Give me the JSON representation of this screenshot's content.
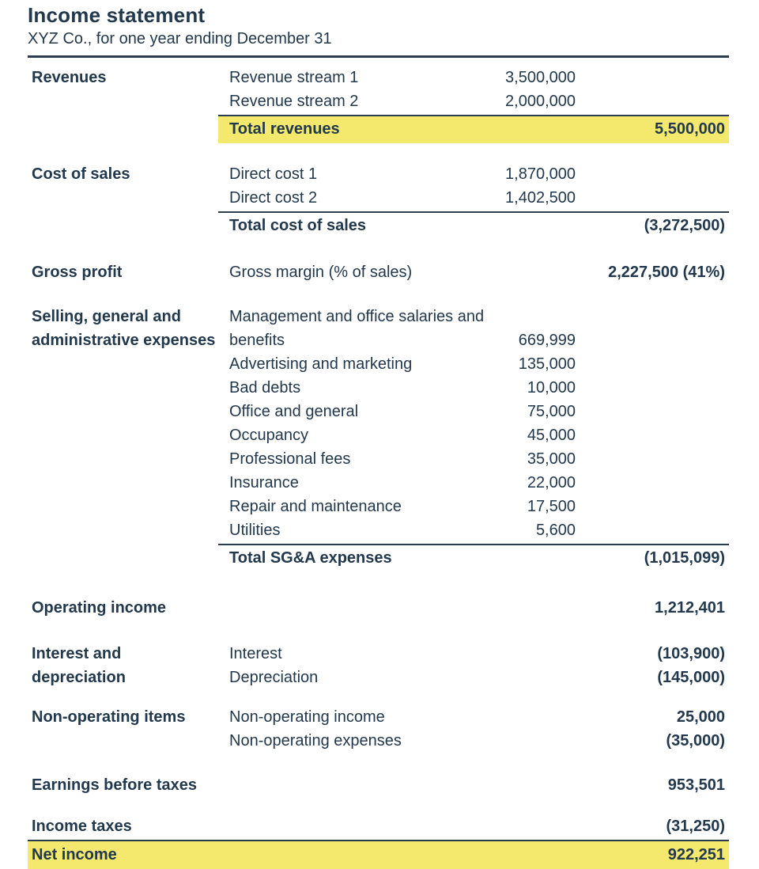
{
  "colors": {
    "ink": "#22384d",
    "highlight": "#f4e96d",
    "rule": "#2b3c4f",
    "bg": "#ffffff"
  },
  "header": {
    "title": "Income statement",
    "subtitle": "XYZ Co., for one year ending December 31"
  },
  "statement": {
    "revenues": {
      "section_label": "Revenues",
      "items": [
        {
          "label": "Revenue stream 1",
          "value": "3,500,000"
        },
        {
          "label": "Revenue stream 2",
          "value": "2,000,000"
        }
      ],
      "total": {
        "label": "Total revenues",
        "value": "5,500,000"
      }
    },
    "cost_of_sales": {
      "section_label": "Cost of sales",
      "items": [
        {
          "label": "Direct cost 1",
          "value": "1,870,000"
        },
        {
          "label": "Direct cost 2",
          "value": "1,402,500"
        }
      ],
      "total": {
        "label": "Total cost of sales",
        "value": "(3,272,500)"
      }
    },
    "gross_profit": {
      "section_label": "Gross profit",
      "detail_label": "Gross margin (% of sales)",
      "value": "2,227,500 (41%)"
    },
    "sga": {
      "section_label": "Selling, general and administrative expenses",
      "items": [
        {
          "label": "Management and office salaries and benefits",
          "value": "669,999"
        },
        {
          "label": "Advertising and marketing",
          "value": "135,000"
        },
        {
          "label": "Bad debts",
          "value": "10,000"
        },
        {
          "label": "Office and general",
          "value": "75,000"
        },
        {
          "label": "Occupancy",
          "value": "45,000"
        },
        {
          "label": "Professional fees",
          "value": "35,000"
        },
        {
          "label": "Insurance",
          "value": "22,000"
        },
        {
          "label": "Repair and maintenance",
          "value": "17,500"
        },
        {
          "label": "Utilities",
          "value": "5,600"
        }
      ],
      "total": {
        "label": "Total SG&A expenses",
        "value": "(1,015,099)"
      }
    },
    "operating_income": {
      "section_label": "Operating income",
      "value": "1,212,401"
    },
    "interest_depreciation": {
      "section_label": "Interest and depreciation",
      "items": [
        {
          "label": "Interest",
          "value": "(103,900)"
        },
        {
          "label": "Depreciation",
          "value": "(145,000)"
        }
      ]
    },
    "non_operating": {
      "section_label": "Non-operating items",
      "items": [
        {
          "label": "Non-operating income",
          "value": "25,000"
        },
        {
          "label": "Non-operating expenses",
          "value": "(35,000)"
        }
      ]
    },
    "earnings_before_taxes": {
      "section_label": "Earnings before taxes",
      "value": "953,501"
    },
    "income_taxes": {
      "section_label": "Income taxes",
      "value": "(31,250)"
    },
    "net_income": {
      "section_label": "Net income",
      "value": "922,251"
    }
  }
}
